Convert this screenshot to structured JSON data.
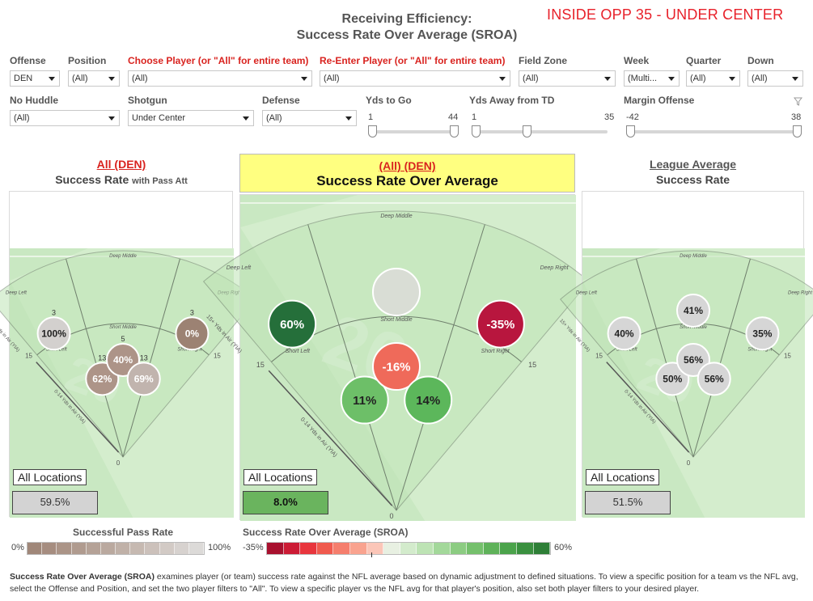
{
  "header": {
    "title_line1": "Receiving Efficiency:",
    "title_line2": "Success Rate Over Average (SROA)",
    "situation": "INSIDE OPP 35 - UNDER CENTER"
  },
  "filters": {
    "offense": {
      "label": "Offense",
      "value": "DEN"
    },
    "position": {
      "label": "Position",
      "value": "(All)"
    },
    "choose_player": {
      "label": "Choose Player (or \"All\" for entire team)",
      "value": "(All)"
    },
    "reenter_player": {
      "label": "Re-Enter Player (or \"All\" for entire team)",
      "value": "(All)"
    },
    "field_zone": {
      "label": "Field Zone",
      "value": "(All)"
    },
    "week": {
      "label": "Week",
      "value": "(Multi..."
    },
    "quarter": {
      "label": "Quarter",
      "value": "(All)"
    },
    "down": {
      "label": "Down",
      "value": "(All)"
    },
    "no_huddle": {
      "label": "No Huddle",
      "value": "(All)"
    },
    "shotgun": {
      "label": "Shotgun",
      "value": "Under Center"
    },
    "defense": {
      "label": "Defense",
      "value": "(All)"
    },
    "yds_to_go": {
      "label": "Yds to Go",
      "min": "1",
      "max": "44"
    },
    "yds_from_td": {
      "label": "Yds Away from TD",
      "min": "1",
      "max": "35"
    },
    "margin_offense": {
      "label": "Margin Offense",
      "min": "-42",
      "max": "38"
    }
  },
  "panels": {
    "left": {
      "title": "All (DEN)",
      "subtitle": "Success Rate",
      "subtitle_small": "with Pass Att",
      "all_label": "All Locations",
      "all_value": "59.5%"
    },
    "center": {
      "title": "(All) (DEN)",
      "subtitle": "Success Rate Over Average",
      "all_label": "All Locations",
      "all_value": "8.0%"
    },
    "right": {
      "title": "League Average",
      "subtitle": "Success Rate",
      "all_label": "All Locations",
      "all_value": "51.5%"
    }
  },
  "field_labels": {
    "deep_left": "Deep Left",
    "deep_middle": "Deep Middle",
    "deep_right": "Deep Right",
    "short_left": "Short Left",
    "short_middle": "Short Middle",
    "short_right": "Short Right",
    "deep_axis": "15+ Yds in Air (YIA)",
    "short_axis": "0-14 Yds in Air (YIA)",
    "fifteen": "15",
    "zero": "0"
  },
  "chart_data": [
    {
      "type": "bubble",
      "name": "Success Rate (DEN)",
      "zones": [
        "Deep Left",
        "Deep Middle",
        "Deep Right",
        "Short Left",
        "Short Middle",
        "Short Right"
      ],
      "values": [
        "100%",
        null,
        "0%",
        "62%",
        "40%",
        "69%"
      ],
      "attempts": [
        "3",
        null,
        "3",
        "13",
        "5",
        "13"
      ],
      "colors": [
        "#d3d0ce",
        null,
        "#9c8273",
        "#ad9488",
        "#ad9488",
        "#c1b4ae"
      ]
    },
    {
      "type": "bubble",
      "name": "Success Rate Over Average (DEN)",
      "zones": [
        "Deep Left",
        "Deep Middle",
        "Deep Right",
        "Short Left",
        "Short Middle",
        "Short Right"
      ],
      "values": [
        "60%",
        null,
        "-35%",
        "11%",
        "-16%",
        "14%"
      ],
      "colors": [
        "#256f3a",
        "#d9ddd5",
        "#b8163e",
        "#6dbf68",
        "#ef6a5a",
        "#5cb75b"
      ]
    },
    {
      "type": "bubble",
      "name": "League Average Success Rate",
      "zones": [
        "Deep Left",
        "Deep Middle",
        "Deep Right",
        "Short Left",
        "Short Middle",
        "Short Right"
      ],
      "values": [
        "40%",
        "41%",
        "35%",
        "50%",
        "56%",
        "56%"
      ],
      "colors": [
        "#d6d6d6",
        "#d6d6d6",
        "#d6d6d6",
        "#d6d6d6",
        "#d6d6d6",
        "#d6d6d6"
      ]
    }
  ],
  "legends": {
    "success": {
      "title": "Successful Pass Rate",
      "min": "0%",
      "max": "100%",
      "colors": [
        "#a08779",
        "#a68d80",
        "#ab9487",
        "#b09b8f",
        "#b5a297",
        "#baa99f",
        "#c0b1a8",
        "#c6b9b1",
        "#ccc1bb",
        "#d2cac5",
        "#d7d2cf",
        "#dcdad8"
      ]
    },
    "sroa": {
      "title": "Success Rate Over Average (SROA)",
      "min": "-35%",
      "max": "60%",
      "colors": [
        "#a8102e",
        "#cc1b35",
        "#e8353d",
        "#f05a4e",
        "#f57e6d",
        "#f9a38f",
        "#fbc6b8",
        "#e8f0e2",
        "#d3ebcc",
        "#bde3b4",
        "#a3d89a",
        "#8ccc82",
        "#75c06c",
        "#5fb25a",
        "#4ba34b",
        "#3a903f",
        "#2e7f37"
      ]
    }
  },
  "footnote": {
    "bold": "Success Rate Over Average (SROA)",
    "text": " examines player (or team) success rate against the NFL average based on dynamic adjustment to defined situations. To view a specific position for a team vs the NFL avg, select the Offense and Position, and set the two player filters to \"All\". To view a specific player vs the NFL avg for that player's position, also set both player filters to your desired player."
  },
  "colors": {
    "accent_red": "#e8212a",
    "sroa_total": "#6ab45e",
    "panel_highlight": "#ffff80"
  }
}
